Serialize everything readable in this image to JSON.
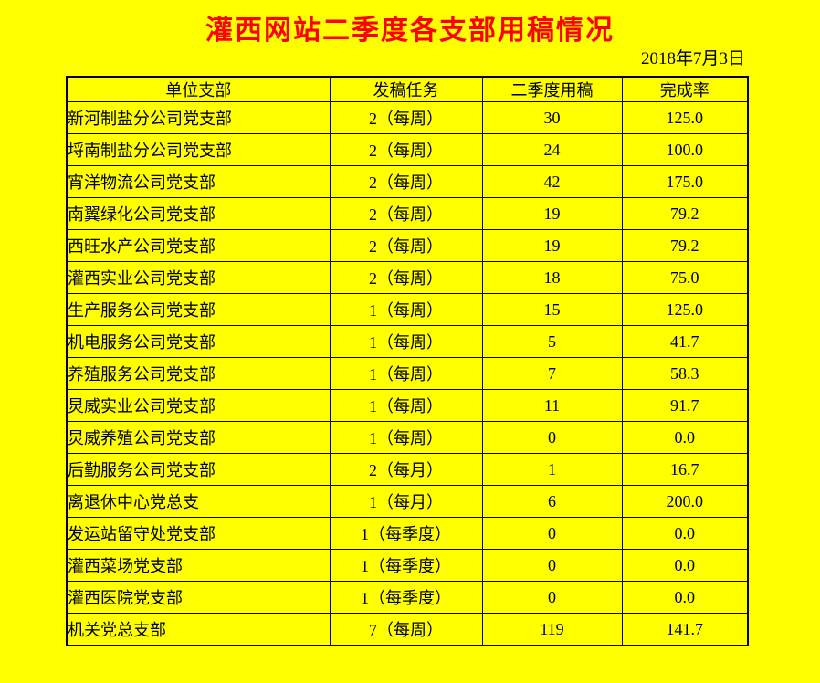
{
  "page": {
    "background_color": "#FFFF00",
    "title_color": "#FF0000",
    "text_color": "#000000",
    "border_color": "#000000"
  },
  "title": "灌西网站二季度各支部用稿情况",
  "date": "2018年7月3日",
  "table": {
    "headers": [
      "单位支部",
      "发稿任务",
      "二季度用稿",
      "完成率"
    ],
    "rows": [
      [
        "新河制盐分公司党支部",
        "2（每周）",
        "30",
        "125.0"
      ],
      [
        "埒南制盐分公司党支部",
        "2（每周）",
        "24",
        "100.0"
      ],
      [
        "宵洋物流公司党支部",
        "2（每周）",
        "42",
        "175.0"
      ],
      [
        "南翼绿化公司党支部",
        "2（每周）",
        "19",
        "79.2"
      ],
      [
        "西旺水产公司党支部",
        "2（每周）",
        "19",
        "79.2"
      ],
      [
        "灌西实业公司党支部",
        "2（每周）",
        "18",
        "75.0"
      ],
      [
        "生产服务公司党支部",
        "1（每周）",
        "15",
        "125.0"
      ],
      [
        "机电服务公司党支部",
        "1（每周）",
        "5",
        "41.7"
      ],
      [
        "养殖服务公司党支部",
        "1（每周）",
        "7",
        "58.3"
      ],
      [
        "炅威实业公司党支部",
        "1（每周）",
        "11",
        "91.7"
      ],
      [
        "炅威养殖公司党支部",
        "1（每周）",
        "0",
        "0.0"
      ],
      [
        "后勤服务公司党支部",
        "2（每月）",
        "1",
        "16.7"
      ],
      [
        "离退休中心党总支",
        "1（每月）",
        "6",
        "200.0"
      ],
      [
        "发运站留守处党支部",
        "1（每季度）",
        "0",
        "0.0"
      ],
      [
        "灌西菜场党支部",
        "1（每季度）",
        "0",
        "0.0"
      ],
      [
        "灌西医院党支部",
        "1（每季度）",
        "0",
        "0.0"
      ],
      [
        "机关党总支部",
        "7（每周）",
        "119",
        "141.7"
      ]
    ]
  }
}
